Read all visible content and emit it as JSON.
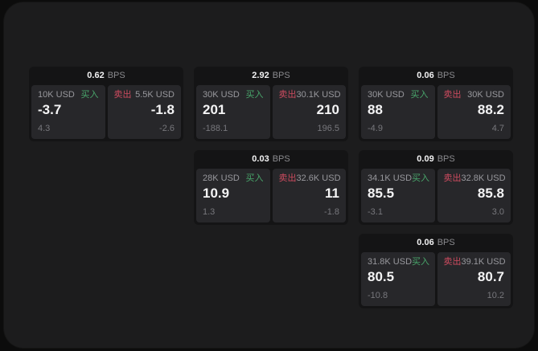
{
  "labels": {
    "bps_unit": "BPS",
    "buy": "买入",
    "sell": "卖出"
  },
  "colors": {
    "background": "#0c0c0c",
    "panel": "#1c1c1d",
    "card": "#141415",
    "tile": "#27272a",
    "buy_green": "#49a66b",
    "sell_red": "#cd4b5f",
    "text_primary": "#f4f4f5",
    "text_secondary": "#98989d",
    "text_muted": "#77777c"
  },
  "cards": [
    {
      "bps": "0.62",
      "buy": {
        "amount": "10K USD",
        "price": "-3.7",
        "delta": "4.3"
      },
      "sell": {
        "amount": "5.5K USD",
        "price": "-1.8",
        "delta": "-2.6"
      }
    },
    {
      "bps": "2.92",
      "buy": {
        "amount": "30K USD",
        "price": "201",
        "delta": "-188.1"
      },
      "sell": {
        "amount": "30.1K USD",
        "price": "210",
        "delta": "196.5"
      }
    },
    {
      "bps": "0.06",
      "buy": {
        "amount": "30K USD",
        "price": "88",
        "delta": "-4.9"
      },
      "sell": {
        "amount": "30K USD",
        "price": "88.2",
        "delta": "4.7"
      }
    },
    {
      "bps": "0.03",
      "buy": {
        "amount": "28K USD",
        "price": "10.9",
        "delta": "1.3"
      },
      "sell": {
        "amount": "32.6K USD",
        "price": "11",
        "delta": "-1.8"
      }
    },
    {
      "bps": "0.09",
      "buy": {
        "amount": "34.1K USD",
        "price": "85.5",
        "delta": "-3.1"
      },
      "sell": {
        "amount": "32.8K USD",
        "price": "85.8",
        "delta": "3.0"
      }
    },
    {
      "bps": "0.06",
      "buy": {
        "amount": "31.8K USD",
        "price": "80.5",
        "delta": "-10.8"
      },
      "sell": {
        "amount": "39.1K USD",
        "price": "80.7",
        "delta": "10.2"
      }
    }
  ]
}
